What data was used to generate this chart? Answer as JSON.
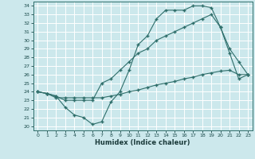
{
  "xlabel": "Humidex (Indice chaleur)",
  "bg_color": "#cce8ec",
  "grid_color": "#ffffff",
  "line_color": "#2e6e6a",
  "xlim": [
    -0.5,
    23.5
  ],
  "ylim": [
    19.5,
    34.5
  ],
  "yticks": [
    20,
    21,
    22,
    23,
    24,
    25,
    26,
    27,
    28,
    29,
    30,
    31,
    32,
    33,
    34
  ],
  "xticks": [
    0,
    1,
    2,
    3,
    4,
    5,
    6,
    7,
    8,
    9,
    10,
    11,
    12,
    13,
    14,
    15,
    16,
    17,
    18,
    19,
    20,
    21,
    22,
    23
  ],
  "line1_x": [
    0,
    1,
    2,
    3,
    4,
    5,
    6,
    7,
    8,
    9,
    10,
    11,
    12,
    13,
    14,
    15,
    16,
    17,
    18,
    19,
    20,
    21,
    22,
    23
  ],
  "line1_y": [
    24.0,
    23.8,
    23.5,
    22.2,
    21.3,
    21.0,
    20.2,
    20.5,
    22.8,
    24.0,
    26.5,
    29.5,
    30.5,
    32.5,
    33.5,
    33.5,
    33.5,
    34.0,
    34.0,
    33.8,
    31.5,
    28.5,
    25.5,
    26.0
  ],
  "line2_x": [
    0,
    1,
    2,
    3,
    4,
    5,
    6,
    7,
    8,
    9,
    10,
    11,
    12,
    13,
    14,
    15,
    16,
    17,
    18,
    19,
    20,
    21,
    22,
    23
  ],
  "line2_y": [
    24.0,
    23.8,
    23.5,
    23.0,
    23.0,
    23.0,
    23.0,
    25.0,
    25.5,
    26.5,
    27.5,
    28.5,
    29.0,
    30.0,
    30.5,
    31.0,
    31.5,
    32.0,
    32.5,
    33.0,
    31.5,
    29.0,
    27.5,
    26.0
  ],
  "line3_x": [
    0,
    1,
    2,
    3,
    4,
    5,
    6,
    7,
    8,
    9,
    10,
    11,
    12,
    13,
    14,
    15,
    16,
    17,
    18,
    19,
    20,
    21,
    22,
    23
  ],
  "line3_y": [
    24.0,
    23.8,
    23.3,
    23.3,
    23.3,
    23.3,
    23.3,
    23.3,
    23.5,
    23.7,
    24.0,
    24.2,
    24.5,
    24.8,
    25.0,
    25.2,
    25.5,
    25.7,
    26.0,
    26.2,
    26.4,
    26.5,
    26.0,
    26.0
  ]
}
